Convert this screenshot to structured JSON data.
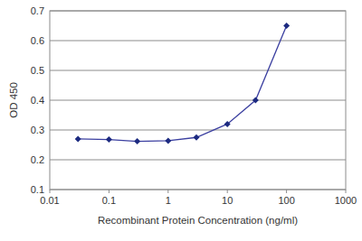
{
  "chart_data": {
    "type": "line",
    "x_label": "Recombinant Protein Concentration (ng/ml)",
    "y_label": "OD 450",
    "x": [
      0.03,
      0.1,
      0.3,
      1,
      3,
      10,
      30,
      100
    ],
    "values": [
      0.27,
      0.268,
      0.262,
      0.264,
      0.275,
      0.32,
      0.4,
      0.65
    ],
    "color": "#3b3fa0",
    "marker": "diamond",
    "log": "x",
    "xlim": [
      0.01,
      1000
    ],
    "xticks": [
      0.01,
      0.1,
      1,
      10,
      100,
      1000
    ],
    "ylim": [
      0.1,
      0.7
    ],
    "yticks": [
      0.1,
      0.2,
      0.3,
      0.4,
      0.5,
      0.6,
      0.7
    ],
    "grid": true
  }
}
